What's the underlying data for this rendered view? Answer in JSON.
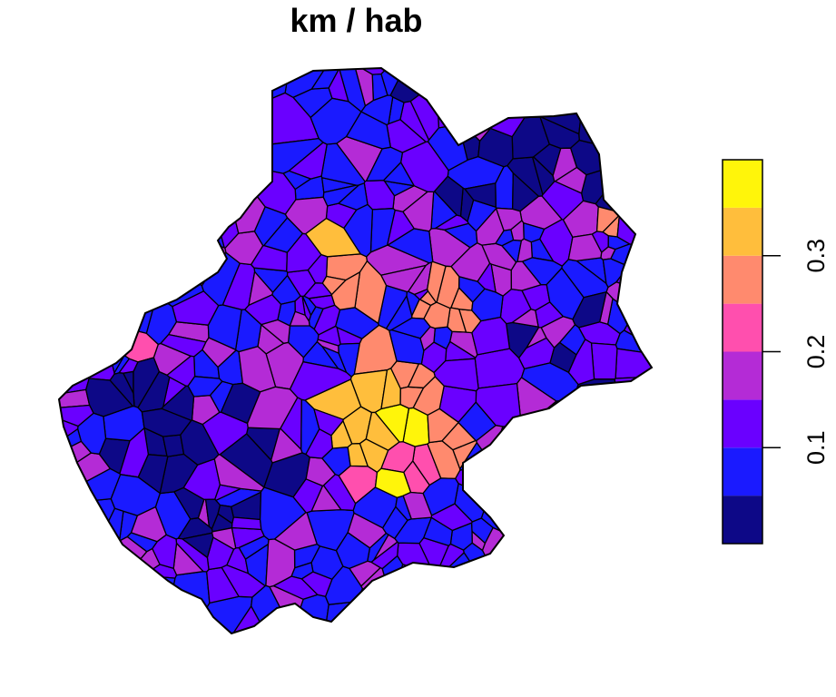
{
  "title": "km / hab",
  "chart_data": {
    "type": "choropleth",
    "title": "km / hab",
    "legend": {
      "placement": "right",
      "orientation": "vertical",
      "range": [
        0,
        0.4
      ],
      "classes": [
        {
          "from": 0.0,
          "to": 0.05,
          "color": "#0D0887"
        },
        {
          "from": 0.05,
          "to": 0.1,
          "color": "#1A1AFF"
        },
        {
          "from": 0.1,
          "to": 0.15,
          "color": "#6A00FF"
        },
        {
          "from": 0.15,
          "to": 0.2,
          "color": "#B42BD6"
        },
        {
          "from": 0.2,
          "to": 0.25,
          "color": "#FF4FAE"
        },
        {
          "from": 0.25,
          "to": 0.3,
          "color": "#FF8A6E"
        },
        {
          "from": 0.3,
          "to": 0.35,
          "color": "#FFBE3C"
        },
        {
          "from": 0.35,
          "to": 0.4,
          "color": "#FFF50A"
        }
      ],
      "ticks": [
        {
          "value": 0.1,
          "label": "0.1"
        },
        {
          "value": 0.2,
          "label": "0.2"
        },
        {
          "value": 0.3,
          "label": "0.3"
        }
      ]
    }
  }
}
